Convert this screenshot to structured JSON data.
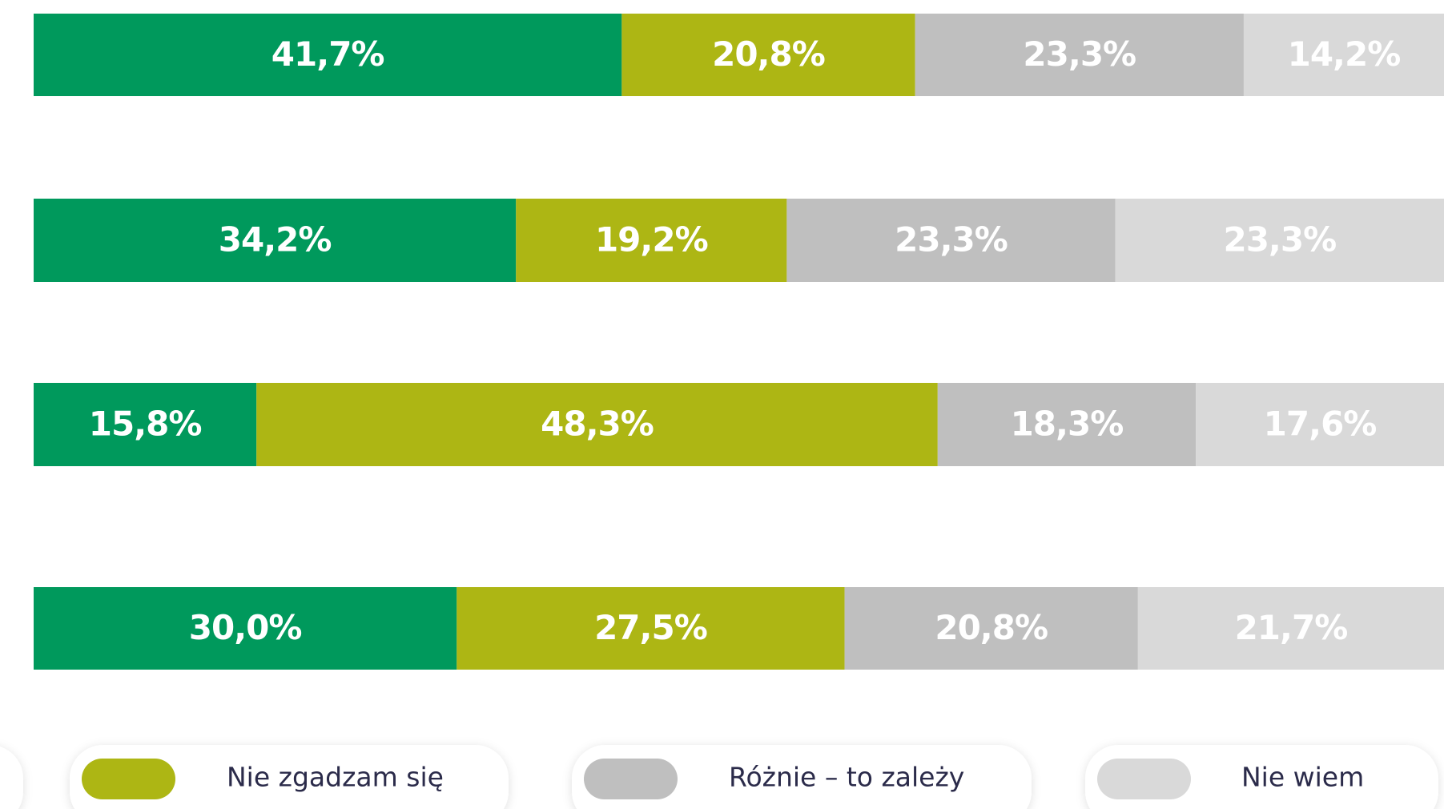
{
  "chart_data": {
    "type": "stacked-bar-horizontal",
    "xlim": [
      0,
      100
    ],
    "series": [
      {
        "color": "#00995c",
        "values": [
          41.7,
          34.2,
          15.8,
          30.0
        ],
        "value_labels": [
          "41,7%",
          "34,2%",
          "15,8%",
          "30,0%"
        ]
      },
      {
        "name": "Nie zgadzam się",
        "color": "#adb614",
        "values": [
          20.8,
          19.2,
          48.3,
          27.5
        ],
        "value_labels": [
          "20,8%",
          "19,2%",
          "48,3%",
          "27,5%"
        ]
      },
      {
        "name": "Różnie – to zależy",
        "color": "#bfbfbf",
        "values": [
          23.3,
          23.3,
          18.3,
          20.8
        ],
        "value_labels": [
          "23,3%",
          "23,3%",
          "18,3%",
          "20,8%"
        ]
      },
      {
        "name": "Nie wiem",
        "color": "#d9d9d9",
        "values": [
          14.2,
          23.3,
          17.6,
          21.7
        ],
        "value_labels": [
          "14,2%",
          "23,3%",
          "17,6%",
          "21,7%"
        ]
      }
    ]
  }
}
